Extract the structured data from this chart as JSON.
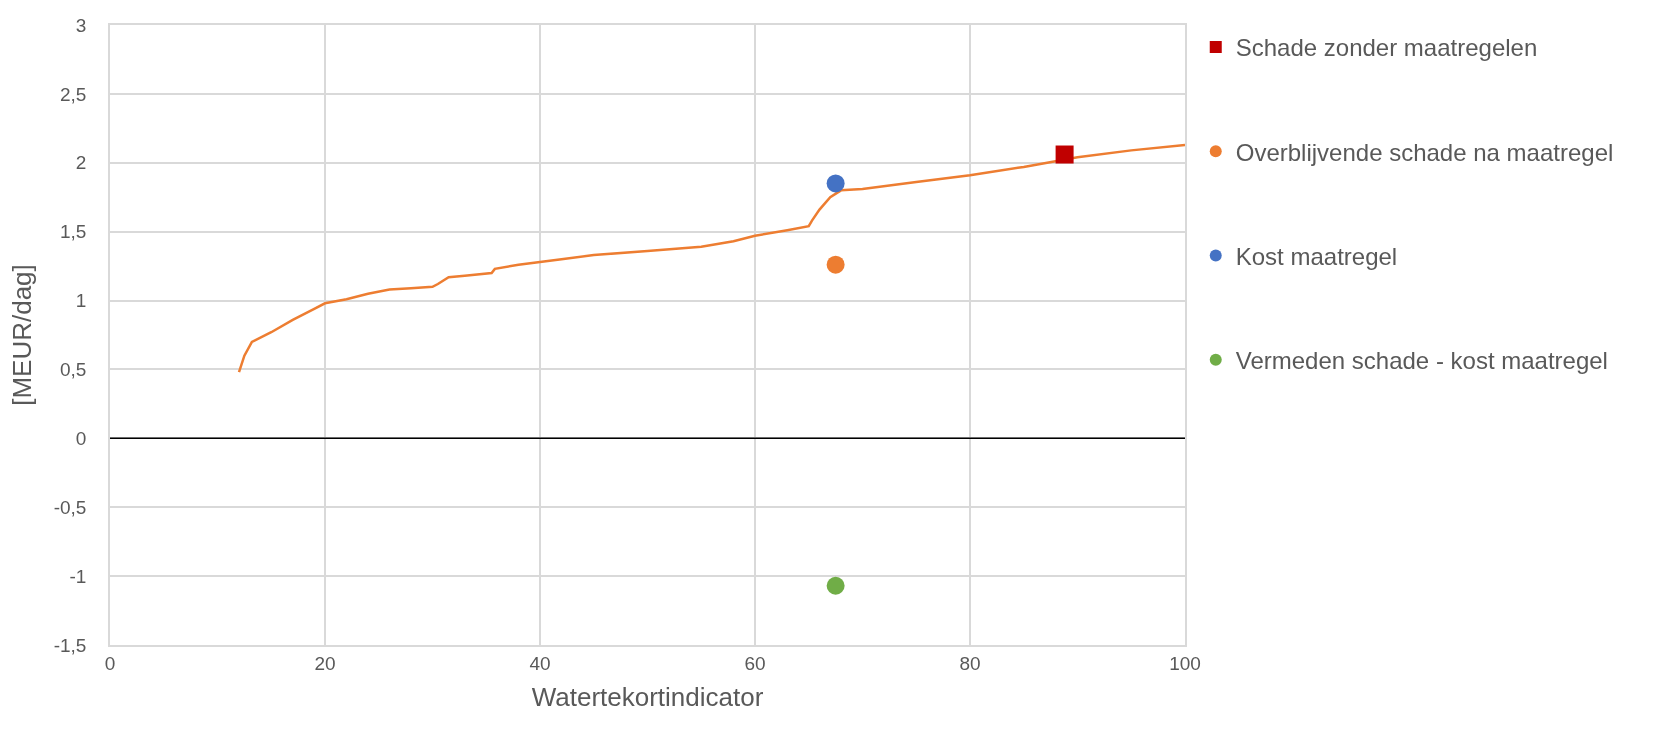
{
  "chart_data": {
    "type": "scatter",
    "xlabel": "Watertekortindicator",
    "ylabel": "[MEUR/dag]",
    "xlim": [
      0,
      100
    ],
    "xticks": [
      0,
      20,
      40,
      60,
      80,
      100
    ],
    "ylim": [
      -1.5,
      3
    ],
    "yticks": [
      {
        "value": -1.5,
        "label": "-1,5"
      },
      {
        "value": -1,
        "label": "-1"
      },
      {
        "value": -0.5,
        "label": "-0,5"
      },
      {
        "value": 0,
        "label": "0"
      },
      {
        "value": 0.5,
        "label": "0,5"
      },
      {
        "value": 1,
        "label": "1"
      },
      {
        "value": 1.5,
        "label": "1,5"
      },
      {
        "value": 2,
        "label": "2"
      },
      {
        "value": 2.5,
        "label": "2,5"
      },
      {
        "value": 3,
        "label": "3"
      }
    ],
    "grid": true,
    "legend": "right",
    "ref_lines": [
      {
        "axis": "y",
        "value": 0,
        "color": "#000000"
      }
    ],
    "series": [
      {
        "type": "line",
        "color": "#ed7d31",
        "marker": "none",
        "x": [
          12,
          12.5,
          13.2,
          15,
          17,
          19,
          20,
          22,
          24,
          26,
          28,
          30,
          30.5,
          31.5,
          33,
          35.5,
          35.8,
          38,
          40,
          42,
          45,
          50,
          55,
          58,
          60,
          63,
          65,
          65.3,
          66,
          67,
          68,
          70,
          75,
          80,
          85,
          90,
          95,
          100
        ],
        "values": [
          0.48,
          0.6,
          0.7,
          0.77,
          0.86,
          0.94,
          0.98,
          1.01,
          1.05,
          1.08,
          1.09,
          1.1,
          1.12,
          1.17,
          1.18,
          1.2,
          1.23,
          1.26,
          1.28,
          1.3,
          1.33,
          1.36,
          1.39,
          1.43,
          1.47,
          1.51,
          1.54,
          1.58,
          1.66,
          1.75,
          1.8,
          1.81,
          1.86,
          1.91,
          1.97,
          2.04,
          2.09,
          2.13
        ]
      },
      {
        "name": "Schade zonder maatregelen",
        "color": "#c00000",
        "marker": "square",
        "x": [
          88.8
        ],
        "values": [
          2.06
        ]
      },
      {
        "name": "Overblijvende schade na maatregel",
        "color": "#ed7d31",
        "marker": "circle",
        "x": [
          67.5
        ],
        "values": [
          1.26
        ]
      },
      {
        "name": "Kost maatregel",
        "color": "#4472c4",
        "marker": "circle",
        "x": [
          67.5
        ],
        "values": [
          1.85
        ]
      },
      {
        "name": "Vermeden schade - kost maatregel",
        "color": "#70ad47",
        "marker": "circle",
        "x": [
          67.5
        ],
        "values": [
          -1.07
        ]
      }
    ]
  }
}
